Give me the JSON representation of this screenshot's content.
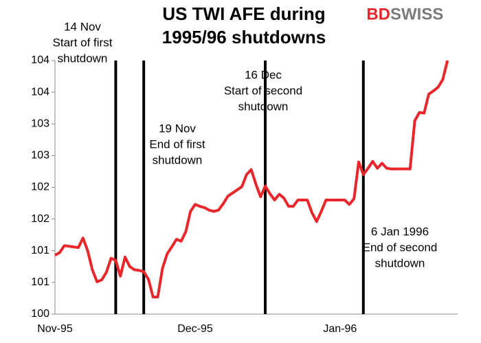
{
  "brand": [
    "BD",
    "SWISS"
  ],
  "chart_data": {
    "type": "line",
    "title": [
      "US TWI AFE during",
      "1995/96 shutdowns"
    ],
    "categories": [
      "Nov-95",
      null,
      null,
      null,
      null,
      null,
      null,
      null,
      null,
      null,
      null,
      null,
      null,
      null,
      null,
      null,
      null,
      null,
      null,
      null,
      null,
      null,
      null,
      null,
      null,
      null,
      null,
      null,
      null,
      null,
      "Dec-95",
      null,
      null,
      null,
      null,
      null,
      null,
      null,
      null,
      null,
      null,
      null,
      null,
      null,
      null,
      null,
      null,
      null,
      null,
      null,
      null,
      null,
      null,
      null,
      null,
      null,
      null,
      null,
      null,
      null,
      null,
      "Jan-96",
      null,
      null,
      null,
      null,
      null,
      null,
      null,
      null,
      null,
      null,
      null,
      null,
      null,
      null,
      null,
      null,
      null,
      null,
      null,
      null,
      null,
      null,
      null
    ],
    "series": [
      {
        "color": "#e8262b",
        "values": [
          100.93,
          100.97,
          101.08,
          101.07,
          101.06,
          101.05,
          101.2,
          101.0,
          100.7,
          100.51,
          100.54,
          100.66,
          100.88,
          100.85,
          100.6,
          100.9,
          100.75,
          100.7,
          100.69,
          100.67,
          100.55,
          100.27,
          100.27,
          100.72,
          100.95,
          101.06,
          101.18,
          101.15,
          101.3,
          101.62,
          101.73,
          101.7,
          101.68,
          101.64,
          101.62,
          101.64,
          101.74,
          101.86,
          101.91,
          101.96,
          102.01,
          102.2,
          102.28,
          102.05,
          101.85,
          102.02,
          101.9,
          101.8,
          101.89,
          101.83,
          101.7,
          101.7,
          101.8,
          101.8,
          101.8,
          101.6,
          101.46,
          101.62,
          101.8,
          101.8,
          101.8,
          101.8,
          101.8,
          101.73,
          101.82,
          102.4,
          102.2,
          102.3,
          102.41,
          102.3,
          102.38,
          102.3,
          102.29,
          102.29,
          102.29,
          102.29,
          102.29,
          103.05,
          103.18,
          103.17,
          103.47,
          103.52,
          103.58,
          103.7,
          104.0
        ]
      }
    ],
    "ylim": [
      100,
      104
    ],
    "yticks": [
      100,
      {
        "value": 100.5,
        "label": "101"
      },
      101,
      {
        "value": 101.5,
        "label": "102"
      },
      102,
      {
        "value": 102.5,
        "label": "103"
      },
      103,
      {
        "value": 103.5,
        "label": "104"
      },
      104
    ],
    "events": [
      {
        "index": 13,
        "label": [
          "14 Nov",
          "Start of first",
          "shutdown"
        ]
      },
      {
        "index": 19,
        "label": [
          "19 Nov",
          "End of first",
          "shutdown"
        ]
      },
      {
        "index": 45,
        "label": [
          "16 Dec",
          "Start of second",
          "shutdown"
        ]
      },
      {
        "index": 66,
        "label": [
          "6 Jan 1996",
          "End of second",
          "shutdown"
        ]
      }
    ]
  }
}
